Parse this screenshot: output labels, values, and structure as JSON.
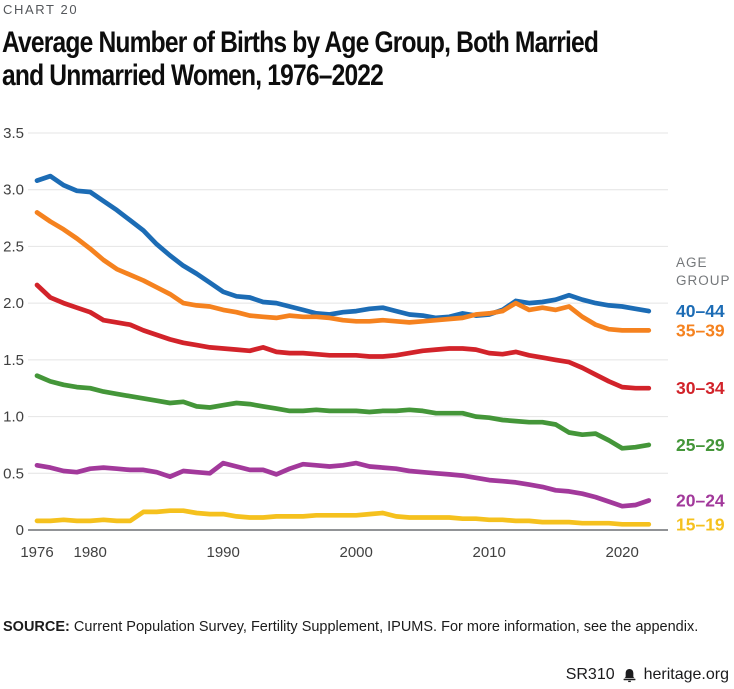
{
  "kicker": "CHART 20",
  "title_line1": "Average Number of Births by Age Group, Both Married",
  "title_line2": "and Unmarried Women, 1976–2022",
  "legend": {
    "heading_line1": "AGE",
    "heading_line2": "GROUP"
  },
  "source": {
    "label": "SOURCE:",
    "text": " Current Population Survey, Fertility Supplement, IPUMS. For more information, see the appendix."
  },
  "footer": {
    "report_id": "SR310",
    "logo_icon": "liberty-bell-icon",
    "site": "heritage.org"
  },
  "colors": {
    "blue": "#1c6cb5",
    "orange": "#f5821f",
    "red": "#d2232a",
    "green": "#449639",
    "purple": "#a2399b",
    "yellow": "#f5c11e",
    "grid": "#e4e4e4",
    "axis": "#919396",
    "tick_text": "#404040",
    "muted_text": "#75787b",
    "kicker_text": "#54575b"
  },
  "chart_data": {
    "type": "line",
    "title": "Average Number of Births by Age Group, Both Married and Unmarried Women, 1976–2022",
    "xlabel": "",
    "ylabel": "",
    "xlim": [
      1976,
      2022
    ],
    "ylim": [
      0,
      3.5
    ],
    "grid": "horizontal",
    "legend_position": "right",
    "legend_title": "AGE GROUP",
    "x_ticks": [
      1976,
      1980,
      1990,
      2000,
      2010,
      2020
    ],
    "y_ticks": [
      "3.5",
      "3.0",
      "2.5",
      "2.0",
      "1.5",
      "1.0",
      "0.5",
      "0"
    ],
    "x": [
      1976,
      1977,
      1978,
      1979,
      1980,
      1981,
      1982,
      1983,
      1984,
      1985,
      1986,
      1987,
      1988,
      1989,
      1990,
      1991,
      1992,
      1993,
      1994,
      1995,
      1996,
      1997,
      1998,
      1999,
      2000,
      2001,
      2002,
      2003,
      2004,
      2005,
      2006,
      2007,
      2008,
      2009,
      2010,
      2011,
      2012,
      2013,
      2014,
      2015,
      2016,
      2017,
      2018,
      2019,
      2020,
      2021,
      2022
    ],
    "series": [
      {
        "name": "40–44",
        "color": "#1c6cb5",
        "values": [
          3.08,
          3.12,
          3.04,
          2.99,
          2.98,
          2.9,
          2.82,
          2.73,
          2.64,
          2.52,
          2.42,
          2.33,
          2.26,
          2.18,
          2.1,
          2.06,
          2.05,
          2.01,
          2.0,
          1.97,
          1.94,
          1.91,
          1.9,
          1.92,
          1.93,
          1.95,
          1.96,
          1.93,
          1.9,
          1.89,
          1.87,
          1.88,
          1.91,
          1.89,
          1.9,
          1.94,
          2.02,
          2.0,
          2.01,
          2.03,
          2.07,
          2.03,
          2.0,
          1.98,
          1.97,
          1.95,
          1.93
        ]
      },
      {
        "name": "35–39",
        "color": "#f5821f",
        "values": [
          2.8,
          2.72,
          2.65,
          2.57,
          2.48,
          2.38,
          2.3,
          2.25,
          2.2,
          2.14,
          2.08,
          2.0,
          1.98,
          1.97,
          1.94,
          1.92,
          1.89,
          1.88,
          1.87,
          1.89,
          1.88,
          1.88,
          1.87,
          1.85,
          1.84,
          1.84,
          1.85,
          1.84,
          1.83,
          1.84,
          1.85,
          1.86,
          1.87,
          1.9,
          1.91,
          1.93,
          2.0,
          1.94,
          1.96,
          1.94,
          1.97,
          1.88,
          1.81,
          1.77,
          1.76,
          1.76,
          1.76
        ]
      },
      {
        "name": "30–34",
        "color": "#d2232a",
        "values": [
          2.16,
          2.05,
          2.0,
          1.96,
          1.92,
          1.85,
          1.83,
          1.81,
          1.76,
          1.72,
          1.68,
          1.65,
          1.63,
          1.61,
          1.6,
          1.59,
          1.58,
          1.61,
          1.57,
          1.56,
          1.56,
          1.55,
          1.54,
          1.54,
          1.54,
          1.53,
          1.53,
          1.54,
          1.56,
          1.58,
          1.59,
          1.6,
          1.6,
          1.59,
          1.56,
          1.55,
          1.57,
          1.54,
          1.52,
          1.5,
          1.48,
          1.43,
          1.37,
          1.31,
          1.26,
          1.25,
          1.25
        ]
      },
      {
        "name": "25–29",
        "color": "#449639",
        "values": [
          1.36,
          1.31,
          1.28,
          1.26,
          1.25,
          1.22,
          1.2,
          1.18,
          1.16,
          1.14,
          1.12,
          1.13,
          1.09,
          1.08,
          1.1,
          1.12,
          1.11,
          1.09,
          1.07,
          1.05,
          1.05,
          1.06,
          1.05,
          1.05,
          1.05,
          1.04,
          1.05,
          1.05,
          1.06,
          1.05,
          1.03,
          1.03,
          1.03,
          1.0,
          0.99,
          0.97,
          0.96,
          0.95,
          0.95,
          0.93,
          0.86,
          0.84,
          0.85,
          0.79,
          0.72,
          0.73,
          0.75
        ]
      },
      {
        "name": "20–24",
        "color": "#a2399b",
        "values": [
          0.57,
          0.55,
          0.52,
          0.51,
          0.54,
          0.55,
          0.54,
          0.53,
          0.53,
          0.51,
          0.47,
          0.52,
          0.51,
          0.5,
          0.59,
          0.56,
          0.53,
          0.53,
          0.49,
          0.54,
          0.58,
          0.57,
          0.56,
          0.57,
          0.59,
          0.56,
          0.55,
          0.54,
          0.52,
          0.51,
          0.5,
          0.49,
          0.48,
          0.46,
          0.44,
          0.43,
          0.42,
          0.4,
          0.38,
          0.35,
          0.34,
          0.32,
          0.29,
          0.25,
          0.21,
          0.22,
          0.26
        ]
      },
      {
        "name": "15–19",
        "color": "#f5c11e",
        "values": [
          0.08,
          0.08,
          0.09,
          0.08,
          0.08,
          0.09,
          0.08,
          0.08,
          0.16,
          0.16,
          0.17,
          0.17,
          0.15,
          0.14,
          0.14,
          0.12,
          0.11,
          0.11,
          0.12,
          0.12,
          0.12,
          0.13,
          0.13,
          0.13,
          0.13,
          0.14,
          0.15,
          0.12,
          0.11,
          0.11,
          0.11,
          0.11,
          0.1,
          0.1,
          0.09,
          0.09,
          0.08,
          0.08,
          0.07,
          0.07,
          0.07,
          0.06,
          0.06,
          0.06,
          0.05,
          0.05,
          0.05
        ]
      }
    ]
  }
}
